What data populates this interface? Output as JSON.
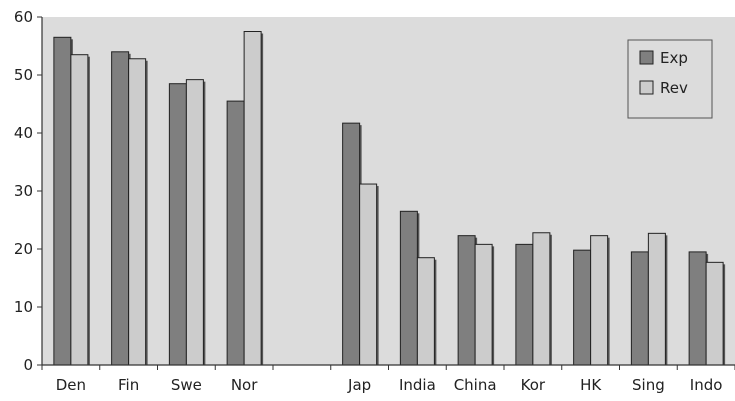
{
  "chart_data": {
    "type": "bar",
    "title": "",
    "xlabel": "",
    "ylabel": "",
    "ylim": [
      0,
      60
    ],
    "yticks": [
      0,
      10,
      20,
      30,
      40,
      50,
      60
    ],
    "grid": false,
    "legend_position": "top-right",
    "categories": [
      "Den",
      "Fin",
      "Swe",
      "Nor",
      "",
      "Jap",
      "India",
      "China",
      "Kor",
      "HK",
      "Sing",
      "Indo"
    ],
    "series": [
      {
        "name": "Exp",
        "color": "#7f7f7f",
        "values": [
          56.5,
          54.0,
          48.5,
          45.5,
          null,
          41.7,
          26.5,
          22.3,
          20.8,
          19.8,
          19.5,
          19.5
        ]
      },
      {
        "name": "Rev",
        "color": "#cccccc",
        "values": [
          53.5,
          52.8,
          49.2,
          57.5,
          null,
          31.2,
          18.5,
          20.8,
          22.8,
          22.3,
          22.7,
          17.7
        ]
      }
    ],
    "colors": {
      "background": "#ffffff",
      "plot_background": "#dcdcdc",
      "axis": "#333333",
      "bar_outline": "#222222"
    }
  }
}
